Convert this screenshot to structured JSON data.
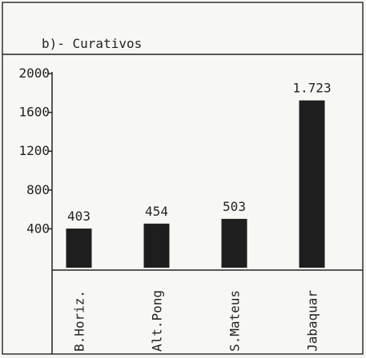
{
  "chart_data": {
    "type": "bar",
    "title": "b)- Curativos",
    "categories": [
      "B.Horiz.",
      "Alt.Pong",
      "S.Mateus",
      "Jabaquar"
    ],
    "values": [
      403,
      454,
      503,
      1723
    ],
    "value_labels": [
      "403",
      "454",
      "503",
      "1.723"
    ],
    "color": "#1e1e1e",
    "ylim": [
      0,
      2000
    ],
    "yticks": [
      400,
      800,
      1200,
      1600,
      2000
    ]
  }
}
